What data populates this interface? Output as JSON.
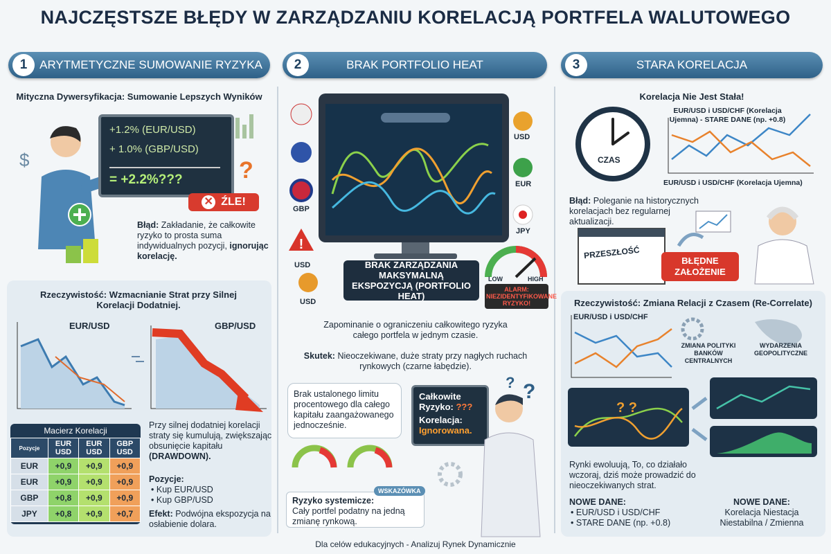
{
  "header": {
    "title": "NAJCZĘSTSZE BŁĘDY W ZARZĄDZANIU KORELACJĄ PORTFELA WALUTOWEGO"
  },
  "sections": [
    {
      "number": "1",
      "heading": "ARYTMETYCZNE SUMOWANIE RYZYKA",
      "subtitle": "Mityczna Dywersyfikacja: Sumowanie Lepszych Wyników",
      "board": [
        "+1.2% (EUR/USD)",
        "+ 1.0% (GBP/USD)",
        "= +2.2%???"
      ],
      "badge": "ŹLE!",
      "error_label": "Błąd:",
      "error_text": "Zakładanie, że całkowite ryzyko to prosta suma indywidualnych pozycji,",
      "error_emphasis": "ignorując korelację.",
      "reality_title": "Rzeczywistość: Wzmacnianie Strat przy Silnej Korelacji Dodatniej.",
      "chart_labels": [
        "EUR/USD",
        "GBP/USD"
      ],
      "matrix": {
        "title": "Macierz Korelacji",
        "header": [
          "Pozycje",
          "EUR USD",
          "EUR USD",
          "GBP USD"
        ],
        "rows": [
          [
            "EUR",
            "+0,9",
            "+0,9",
            "+0,9"
          ],
          [
            "EUR",
            "+0,9",
            "+0,9",
            "+0,9"
          ],
          [
            "GBP",
            "+0,8",
            "+0,9",
            "+0,9"
          ],
          [
            "JPY",
            "+0,8",
            "+0,9",
            "+0,7"
          ]
        ]
      },
      "note_text": "Przy silnej dodatniej korelacji straty się kumulują, zwiększając obsunięcie kapitału",
      "note_emphasis": "(DRAWDOWN).",
      "positions_label": "Pozycje:",
      "positions": [
        "Kup EUR/USD",
        "Kup GBP/USD"
      ],
      "effect_label": "Efekt:",
      "effect_text": "Podwójna ekspozycja na osłabienie dolara."
    },
    {
      "number": "2",
      "heading": "BRAK PORTFOLIO HEAT",
      "currencies": [
        "USD",
        "EUR",
        "JPY",
        "GBP",
        "USD",
        "USD"
      ],
      "monitor_caption": "BRAK ZARZĄDZANIA MAKSYMALNĄ EKSPOZYCJĄ (PORTFOLIO HEAT)",
      "gauge_low": "LOW",
      "gauge_high": "HIGH",
      "alarm": "ALARM: NIEZIDENTYFIKOWANE RYZYKO!",
      "description": "Zapominanie o ograniczeniu całkowitego ryzyka całego portfela w jednym czasie.",
      "effect_label": "Skutek:",
      "effect_text": "Nieoczekiwane, duże straty przy nagłych ruchach rynkowych (czarne łabędzie).",
      "bubble": "Brak ustalonego limitu procentowego dla całego kapitału zaangażowanego jednocześnie.",
      "board": [
        "Całkowite Ryzyko:",
        "???",
        "Korelacja:",
        "Ignorowana."
      ],
      "tip_tag": "WSKAZÓWKA",
      "tip_label": "Ryzyko systemicze:",
      "tip_text": "Cały portfel podatny na jedną zmianę rynkową."
    },
    {
      "number": "3",
      "heading": "STARA KORELACJA",
      "subtitle": "Korelacja Nie Jest Stała!",
      "clock_label": "CZAS",
      "chart_title": "EUR/USD i USD/CHF (Korelacja Ujemna) - STARE DANE (np. +0.8)",
      "chart_caption": "EUR/USD i USD/CHF (Korelacja Ujemna)",
      "error_label": "Błąd:",
      "error_text": "Poleganie na historycznych korelacjach bez regularnej aktualizacji.",
      "calendar": "PRZESZŁOŚĆ",
      "banner": "BŁĘDNE ZAŁOŻENIE",
      "reality_title": "Rzeczywistość: Zmiana Relacji z Czasem (Re-Correlate)",
      "reality_chart": "EUR/USD i USD/CHF",
      "factors": [
        "ZMIANA POLITYKI BANKÓW CENTRALNYCH",
        "WYDARZENIA GEOPOLITYCZNE"
      ],
      "evolution": "Rynki ewoluują, To, co działało wczoraj, dziś może prowadzić do nieoczekiwanych strat.",
      "new_data_label": "NOWE DANE:",
      "new_data": [
        "EUR/USD i USD/CHF",
        "STARE DANE (np. +0.8)"
      ],
      "new_data_label_2": "NOWE DANE:",
      "new_data_text": "Korelacja Niestacja Niestabilna / Zmienna"
    }
  ],
  "footer": "Dla celów edukacyjnych - Analizuj Rynek Dynamicznie"
}
